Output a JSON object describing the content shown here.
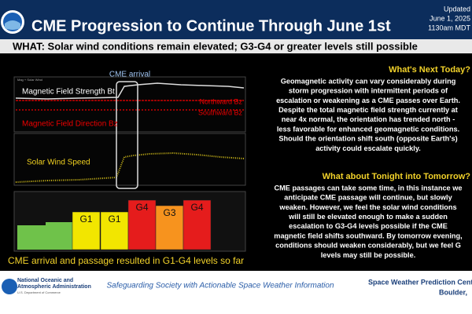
{
  "header": {
    "title": "CME Progression to Continue Through June 1st",
    "updated": [
      "Updated",
      "June 1, 2025",
      "1130am MDT"
    ],
    "what": "WHAT: Solar wind conditions remain elevated; G3-G4 or greater levels still possible"
  },
  "plot": {
    "panel_title": "Mag + Solar Wind",
    "cme_label": "CME arrival",
    "bt_label": "Magnetic Field Strength  Bt",
    "north_label": "Northward  Bz",
    "south_label": "Southward  Bz",
    "bz_label": "Magnetic Field Direction  Bz",
    "speed_label": "Solar Wind Speed",
    "storm_levels": [
      "G1",
      "G1",
      "G4",
      "G3",
      "G4"
    ],
    "caption": "CME arrival and passage resulted in G1-G4 levels so far"
  },
  "today": {
    "heading": "What's Next Today?",
    "lines": [
      "Geomagnetic activity can vary considerably during",
      "storm progression with intermittent periods of",
      "escalation or weakening as a CME passes over Earth.",
      "Despite the total magnetic field strength currently at",
      "near 4x normal, the orientation has trended north -",
      "less favorable for enhanced geomagnetic conditions.",
      "Should the orientation shift south (opposite Earth's)",
      "activity could escalate quickly."
    ]
  },
  "tonight": {
    "heading": "What about Tonight into Tomorrow?",
    "lines": [
      "CME passages can take some time, in this instance we",
      "anticipate CME passage will continue, but slowly",
      "weaken. However, we feel the solar wind conditions",
      "will still be elevated enough to make a sudden",
      "escalation to G3-G4 levels possible if the CME",
      "magnetic field shifts southward. By tomorrow evening,",
      "conditions should weaken considerably, but we feel G",
      "levels may still be possible."
    ]
  },
  "footer": {
    "agency": [
      "National Oceanic and",
      "Atmospheric Administration"
    ],
    "department": "U.S. Department of Commerce",
    "slogan": "Safeguarding Society with Actionable Space Weather Information",
    "center": [
      "Space Weather Prediction Cent",
      "Boulder,"
    ]
  }
}
